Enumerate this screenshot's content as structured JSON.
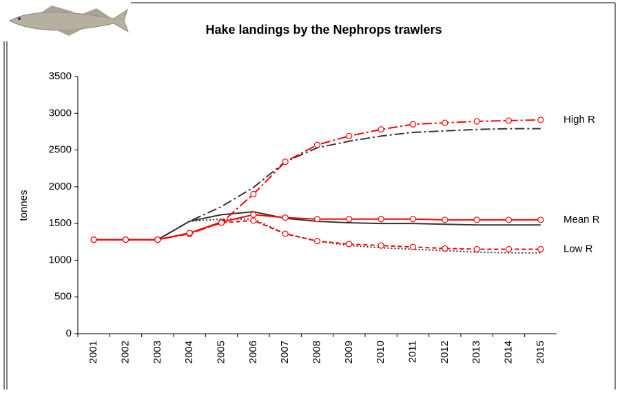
{
  "chart_data": {
    "type": "line",
    "title": "Hake landings by the Nephrops trawlers",
    "y_label": "tonnes",
    "categories": [
      "2001",
      "2002",
      "2003",
      "2004",
      "2005",
      "2006",
      "2007",
      "2008",
      "2009",
      "2010",
      "2011",
      "2012",
      "2013",
      "2014",
      "2015"
    ],
    "ylim": [
      0,
      3500
    ],
    "yticks": [
      0,
      500,
      1000,
      1500,
      2000,
      2500,
      3000,
      3500
    ],
    "series": [
      {
        "color": "#333333",
        "dash": "14,4,3,4",
        "markers": false,
        "values": [
          1280,
          1280,
          1280,
          1530,
          1730,
          1990,
          2340,
          2530,
          2620,
          2690,
          2740,
          2760,
          2780,
          2790,
          2790
        ]
      },
      {
        "color": "#333333",
        "dash": "",
        "markers": false,
        "values": [
          1280,
          1280,
          1280,
          1530,
          1620,
          1660,
          1570,
          1530,
          1510,
          1500,
          1500,
          1490,
          1480,
          1480,
          1480
        ]
      },
      {
        "color": "#333333",
        "dash": "2,3",
        "markers": false,
        "values": [
          1280,
          1280,
          1280,
          1530,
          1560,
          1560,
          1360,
          1260,
          1200,
          1170,
          1150,
          1130,
          1110,
          1100,
          1100
        ]
      },
      {
        "color": "#ff0000",
        "dash": "14,4,3,4",
        "markers": true,
        "values": [
          1280,
          1280,
          1280,
          1360,
          1510,
          1900,
          2340,
          2570,
          2690,
          2780,
          2850,
          2870,
          2890,
          2900,
          2910
        ]
      },
      {
        "color": "#ff0000",
        "dash": "",
        "markers": true,
        "values": [
          1280,
          1280,
          1280,
          1370,
          1520,
          1620,
          1580,
          1560,
          1560,
          1560,
          1560,
          1550,
          1550,
          1550,
          1550
        ]
      },
      {
        "color": "#ff0000",
        "dash": "6,4",
        "markers": true,
        "values": [
          1280,
          1280,
          1280,
          1370,
          1510,
          1540,
          1360,
          1260,
          1220,
          1200,
          1180,
          1160,
          1150,
          1150,
          1150
        ]
      }
    ],
    "annotations": [
      "High R",
      "Mean R",
      "Low R"
    ]
  }
}
